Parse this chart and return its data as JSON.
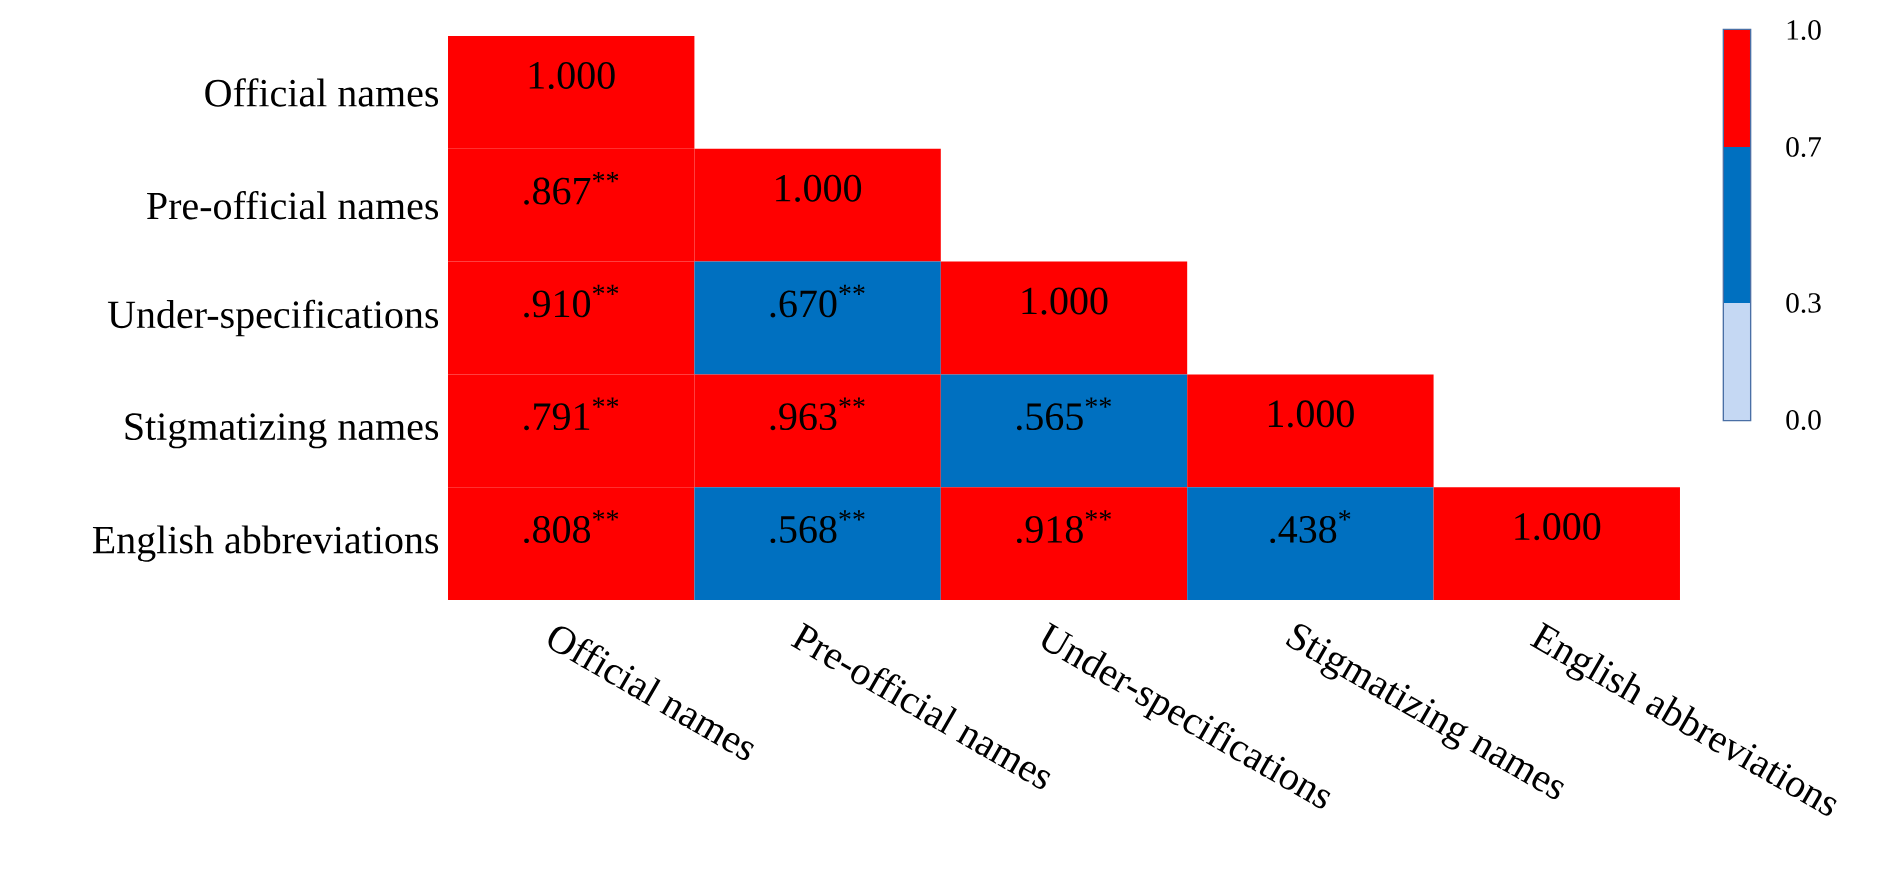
{
  "chart_data": {
    "type": "heatmap",
    "categories": [
      "Official names",
      "Pre-official names",
      "Under-specifications",
      "Stigmatizing names",
      "English abbreviations"
    ],
    "y_categories": [
      "Official names",
      "Pre-official names",
      "Under-specifications",
      "Stigmatizing names",
      "English abbreviations"
    ],
    "cells": [
      [
        1.0,
        null,
        null,
        null,
        null
      ],
      [
        0.867,
        1.0,
        null,
        null,
        null
      ],
      [
        0.91,
        0.67,
        1.0,
        null,
        null
      ],
      [
        0.791,
        0.963,
        0.565,
        1.0,
        null
      ],
      [
        0.808,
        0.568,
        0.918,
        0.438,
        1.0
      ]
    ],
    "cell_labels": [
      [
        "1.000",
        null,
        null,
        null,
        null
      ],
      [
        ".867$^{**}$",
        "1.000",
        null,
        null,
        null
      ],
      [
        ".910$^{**}$",
        ".670$^{**}$",
        "1.000",
        null,
        null
      ],
      [
        ".791$^{**}$",
        ".963$^{**}$",
        ".565$^{**}$",
        "1.000",
        null
      ],
      [
        ".808$^{**}$",
        ".568$^{**}$",
        ".918$^{**}$",
        ".438$^{*}$",
        "1.000"
      ]
    ],
    "clim": [
      0,
      1
    ],
    "cticks": [
      {
        "value": 0,
        "label": "0.0"
      },
      {
        "value": 0.3,
        "label": "0.3"
      },
      {
        "value": 0.7,
        "label": "0.7"
      },
      {
        "value": 1,
        "label": "1.0"
      }
    ]
  }
}
